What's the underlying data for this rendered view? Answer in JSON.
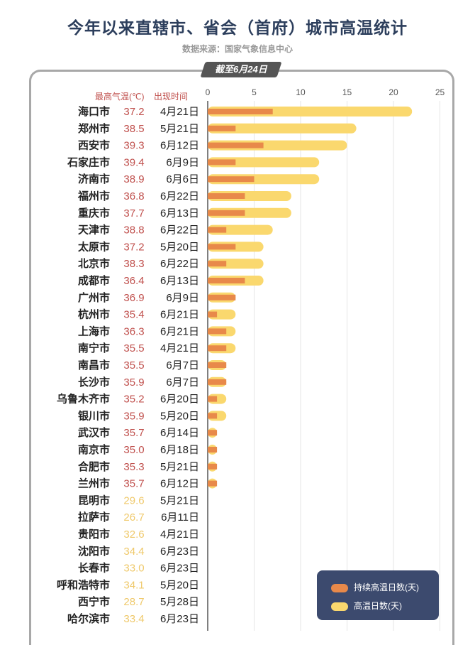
{
  "title": "今年以来直辖市、省会（首府）城市高温统计",
  "source": "数据来源：国家气象信息中心",
  "tab_label": "截至6月24日",
  "columns": {
    "max_temp": "最高气温(℃)",
    "date": "出现时间"
  },
  "colors": {
    "continuous": "#e8894a",
    "total": "#fad86e",
    "temp_hot": "#c0504d",
    "temp_mild": "#efc96b",
    "text": "#222222"
  },
  "legend": {
    "continuous": "持续高温日数(天)",
    "total": "高温日数(天)"
  },
  "chart_data": {
    "type": "bar",
    "orientation": "horizontal",
    "xlim": [
      0,
      25
    ],
    "xticks": [
      "0",
      "5",
      "10",
      "15",
      "20",
      "25"
    ],
    "categories": [
      "海口市",
      "郑州市",
      "西安市",
      "石家庄市",
      "济南市",
      "福州市",
      "重庆市",
      "天津市",
      "太原市",
      "北京市",
      "成都市",
      "广州市",
      "杭州市",
      "上海市",
      "南宁市",
      "南昌市",
      "长沙市",
      "乌鲁木齐市",
      "银川市",
      "武汉市",
      "南京市",
      "合肥市",
      "兰州市",
      "昆明市",
      "拉萨市",
      "贵阳市",
      "沈阳市",
      "长春市",
      "呼和浩特市",
      "西宁市",
      "哈尔滨市"
    ],
    "max_temp": [
      "37.2",
      "38.5",
      "39.3",
      "39.4",
      "38.9",
      "36.8",
      "37.7",
      "38.8",
      "37.2",
      "38.3",
      "36.4",
      "36.9",
      "35.4",
      "36.3",
      "35.5",
      "35.5",
      "35.9",
      "35.2",
      "35.9",
      "35.7",
      "35.0",
      "35.3",
      "35.7",
      "29.6",
      "26.7",
      "32.6",
      "34.4",
      "33.0",
      "34.1",
      "28.7",
      "33.4"
    ],
    "date": [
      "4月21日",
      "5月21日",
      "6月12日",
      "6月9日",
      "6月6日",
      "6月22日",
      "6月13日",
      "6月22日",
      "5月20日",
      "6月22日",
      "6月13日",
      "6月9日",
      "6月21日",
      "6月21日",
      "4月21日",
      "6月7日",
      "6月7日",
      "6月20日",
      "5月20日",
      "6月14日",
      "6月18日",
      "5月21日",
      "6月12日",
      "5月21日",
      "6月11日",
      "4月21日",
      "6月23日",
      "6月23日",
      "5月20日",
      "5月28日",
      "6月23日"
    ],
    "series": [
      {
        "name": "持续高温日数(天)",
        "values": [
          7,
          3,
          6,
          3,
          5,
          4,
          4,
          2,
          3,
          2,
          4,
          3,
          1,
          2,
          2,
          2,
          2,
          1,
          1,
          1,
          1,
          1,
          1,
          0,
          0,
          0,
          0,
          0,
          0,
          0,
          0
        ]
      },
      {
        "name": "高温日数(天)",
        "values": [
          22,
          16,
          15,
          12,
          12,
          9,
          9,
          7,
          6,
          6,
          6,
          3,
          3,
          3,
          3,
          2,
          2,
          2,
          2,
          1,
          1,
          1,
          1,
          0,
          0,
          0,
          0,
          0,
          0,
          0,
          0
        ]
      }
    ]
  }
}
